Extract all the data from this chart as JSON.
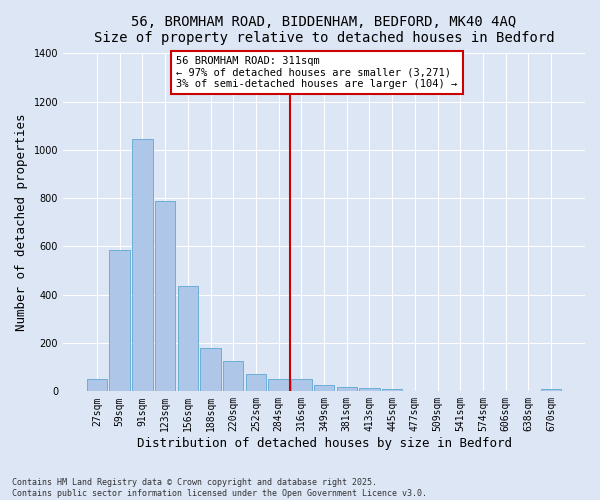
{
  "title_line1": "56, BROMHAM ROAD, BIDDENHAM, BEDFORD, MK40 4AQ",
  "title_line2": "Size of property relative to detached houses in Bedford",
  "xlabel": "Distribution of detached houses by size in Bedford",
  "ylabel": "Number of detached properties",
  "bar_color": "#aec6e8",
  "bar_edge_color": "#6baed6",
  "background_color": "#dce6f5",
  "grid_color": "#ffffff",
  "categories": [
    "27sqm",
    "59sqm",
    "91sqm",
    "123sqm",
    "156sqm",
    "188sqm",
    "220sqm",
    "252sqm",
    "284sqm",
    "316sqm",
    "349sqm",
    "381sqm",
    "413sqm",
    "445sqm",
    "477sqm",
    "509sqm",
    "541sqm",
    "574sqm",
    "606sqm",
    "638sqm",
    "670sqm"
  ],
  "values": [
    50,
    585,
    1045,
    790,
    435,
    180,
    125,
    70,
    50,
    50,
    25,
    20,
    15,
    10,
    0,
    0,
    0,
    0,
    0,
    0,
    10
  ],
  "ylim": [
    0,
    1400
  ],
  "yticks": [
    0,
    200,
    400,
    600,
    800,
    1000,
    1200,
    1400
  ],
  "vline_index": 9,
  "vline_color": "#cc0000",
  "annotation_text": "56 BROMHAM ROAD: 311sqm\n← 97% of detached houses are smaller (3,271)\n3% of semi-detached houses are larger (104) →",
  "annotation_box_color": "#ffffff",
  "annotation_box_edge": "#cc0000",
  "footnote": "Contains HM Land Registry data © Crown copyright and database right 2025.\nContains public sector information licensed under the Open Government Licence v3.0.",
  "title_fontsize": 10,
  "axis_label_fontsize": 9,
  "tick_fontsize": 7,
  "annotation_fontsize": 7.5,
  "ylabel_text": "Number of detached properties"
}
